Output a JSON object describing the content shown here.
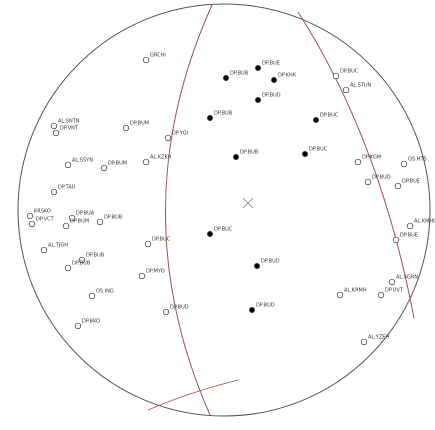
{
  "stations": [
    {
      "label": "GRCHI",
      "filled": false
    },
    {
      "label": "DP.BUE",
      "filled": true
    },
    {
      "label": "DP.BUB",
      "filled": true
    },
    {
      "label": "DP.KHK",
      "filled": true
    },
    {
      "label": "DP.BUC",
      "filled": false
    },
    {
      "label": "AL.STUN",
      "filled": false
    },
    {
      "label": "DP.BUD",
      "filled": true
    },
    {
      "label": "DP.BUB",
      "filled": true
    },
    {
      "label": "DP.BUC",
      "filled": true
    },
    {
      "label": "DP.BUM",
      "filled": false
    },
    {
      "label": "AL.SNTN",
      "filled": false
    },
    {
      "label": "DP.VNT",
      "filled": false
    },
    {
      "label": "DP.YGI",
      "filled": false
    },
    {
      "label": "DP.BUB",
      "filled": true
    },
    {
      "label": "DP.BUC",
      "filled": true
    },
    {
      "label": "DP.KGM",
      "filled": false
    },
    {
      "label": "OS.HTS",
      "filled": false
    },
    {
      "label": "AL.KZKH",
      "filled": false
    },
    {
      "label": "DP.BUM",
      "filled": false
    },
    {
      "label": "AL.SSYN",
      "filled": false
    },
    {
      "label": "DP.BUD",
      "filled": false
    },
    {
      "label": "DP.BUE",
      "filled": false
    },
    {
      "label": "DP.TAU",
      "filled": false
    },
    {
      "label": "KRSKO",
      "filled": false
    },
    {
      "label": "DP.VCT",
      "filled": false
    },
    {
      "label": "DP.BUA",
      "filled": false
    },
    {
      "label": "DP.BUM",
      "filled": false
    },
    {
      "label": "DP.BUB",
      "filled": false
    },
    {
      "label": "DP.BUC",
      "filled": true
    },
    {
      "label": "DP.BUC",
      "filled": false
    },
    {
      "label": "AL.KMHO",
      "filled": false
    },
    {
      "label": "DP.BUE",
      "filled": false
    },
    {
      "label": "AL.TJGH",
      "filled": false
    },
    {
      "label": "DP.BUB",
      "filled": false
    },
    {
      "label": "DP.BUB",
      "filled": false
    },
    {
      "label": "DP.BUD",
      "filled": true
    },
    {
      "label": "DP.MYO",
      "filled": false
    },
    {
      "label": "AL.SGRN",
      "filled": false
    },
    {
      "label": "OS.ING",
      "filled": false
    },
    {
      "label": "AL.KRMH",
      "filled": false
    },
    {
      "label": "DP.UVT",
      "filled": false
    },
    {
      "label": "DP.BUD",
      "filled": false
    },
    {
      "label": "DP.BUD",
      "filled": true
    },
    {
      "label": "DP.BKO",
      "filled": false
    },
    {
      "label": "AL.YZEH",
      "filled": false
    }
  ]
}
